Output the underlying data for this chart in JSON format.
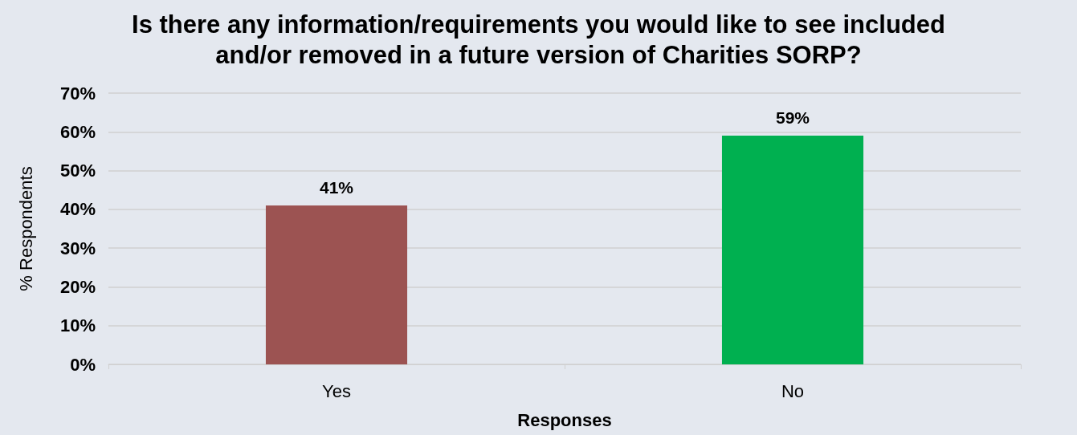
{
  "chart_data": {
    "type": "bar",
    "title": "Is there any information/requirements you would like to see included\nand/or removed in a future version of Charities SORP?",
    "xlabel": "Responses",
    "ylabel": "% Respondents",
    "categories": [
      "Yes",
      "No"
    ],
    "values": [
      41,
      59
    ],
    "colors": [
      "#9c5352",
      "#00b050"
    ],
    "value_labels": [
      "41%",
      "59%"
    ],
    "ylim": [
      0,
      70
    ],
    "yticks": [
      {
        "value": 0,
        "label": "0%"
      },
      {
        "value": 10,
        "label": "10%"
      },
      {
        "value": 20,
        "label": "20%"
      },
      {
        "value": 30,
        "label": "30%"
      },
      {
        "value": 40,
        "label": "40%"
      },
      {
        "value": 50,
        "label": "50%"
      },
      {
        "value": 60,
        "label": "60%"
      },
      {
        "value": 70,
        "label": "70%"
      }
    ],
    "grid": "y"
  }
}
